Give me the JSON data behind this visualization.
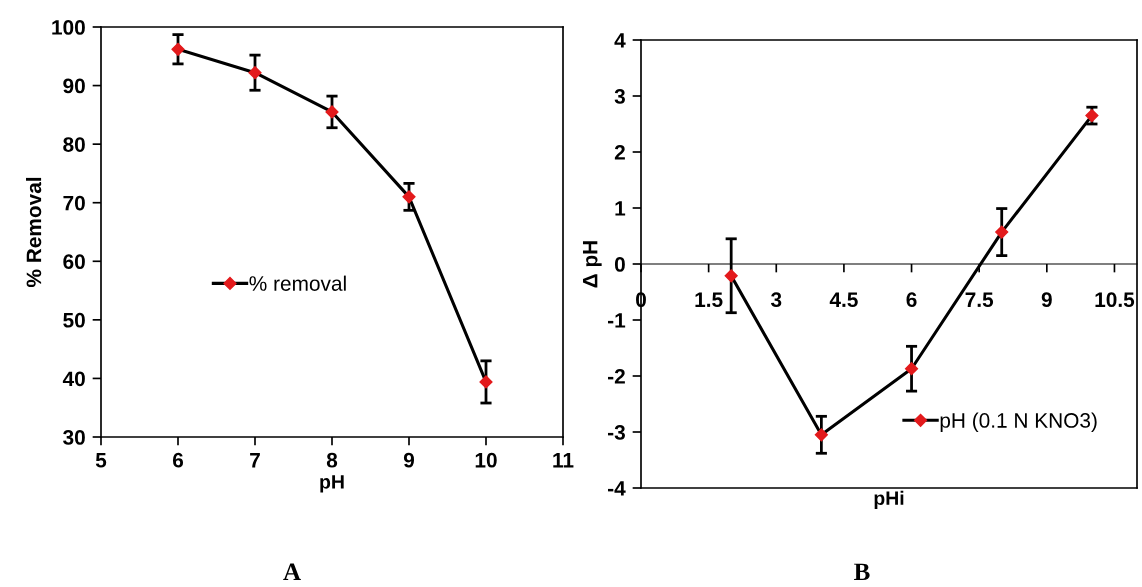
{
  "chart_data": [
    {
      "type": "line",
      "xlabel": "pH",
      "ylabel": "% Removal",
      "x": [
        6,
        7,
        8,
        9,
        10
      ],
      "series": [
        {
          "name": "% removal",
          "color": "#e31a1c",
          "values": [
            96.2,
            92.2,
            85.5,
            71.0,
            39.4
          ],
          "errors": [
            2.5,
            3.0,
            2.7,
            2.3,
            3.6
          ]
        }
      ],
      "xlim": [
        5,
        11
      ],
      "xticks": [
        5,
        6,
        7,
        8,
        9,
        10,
        11
      ],
      "ylim": [
        30,
        100
      ],
      "yticks": [
        30,
        40,
        50,
        60,
        70,
        80,
        90,
        100
      ],
      "marker": "diamond",
      "line_style": "solid",
      "legend": "left",
      "annotations": [
        "A"
      ]
    },
    {
      "type": "line",
      "xlabel": "pHi",
      "ylabel": "Δ pH",
      "x": [
        2,
        4,
        6,
        8,
        10
      ],
      "series": [
        {
          "name": "pH (0.1 N KNO3)",
          "color": "#e31a1c",
          "values": [
            -0.21,
            -3.05,
            -1.87,
            0.57,
            2.65
          ],
          "errors": [
            0.66,
            0.33,
            0.4,
            0.42,
            0.15
          ]
        }
      ],
      "xlim": [
        0,
        11
      ],
      "xticks": [
        0,
        1.5,
        3,
        4.5,
        6,
        7.5,
        9,
        10.5
      ],
      "ylim": [
        -4,
        4
      ],
      "yticks": [
        -4,
        -3,
        -2,
        -1,
        0,
        1,
        2,
        3,
        4
      ],
      "marker": "diamond",
      "line_style": "solid",
      "legend": "bottom right",
      "annotations": [
        "B"
      ]
    }
  ]
}
